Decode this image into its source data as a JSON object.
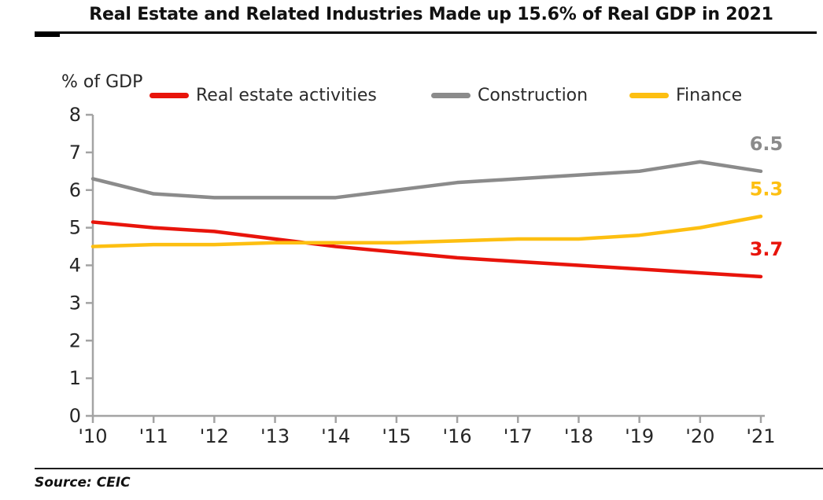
{
  "title": "Real Estate and Related Industries Made up 15.6% of Real GDP in 2021",
  "source": "Source: CEIC",
  "chart_data": {
    "type": "line",
    "title": "Real Estate and Related Industries Made up 15.6% of Real GDP in 2021",
    "y_axis_title": "% of GDP",
    "xlabel": "",
    "ylabel": "% of GDP",
    "categories": [
      "'10",
      "'11",
      "'12",
      "'13",
      "'14",
      "'15",
      "'16",
      "'17",
      "'18",
      "'19",
      "'20",
      "'21"
    ],
    "ylim": [
      0,
      8
    ],
    "y_ticks": [
      0,
      1,
      2,
      3,
      4,
      5,
      6,
      7,
      8
    ],
    "grid": false,
    "legend_position": "top",
    "axis_color": "#a3a3a3",
    "text_color": "#262626",
    "series": [
      {
        "name": "Real estate activities",
        "color": "#e8140b",
        "end_label": "3.7",
        "values": [
          5.15,
          5.0,
          4.9,
          4.7,
          4.5,
          4.35,
          4.2,
          4.1,
          4.0,
          3.9,
          3.8,
          3.7
        ]
      },
      {
        "name": "Construction",
        "color": "#8b8b8b",
        "end_label": "6.5",
        "values": [
          6.3,
          5.9,
          5.8,
          5.8,
          5.8,
          6.0,
          6.2,
          6.3,
          6.4,
          6.5,
          6.75,
          6.5
        ]
      },
      {
        "name": "Finance",
        "color": "#fdbf11",
        "end_label": "5.3",
        "values": [
          4.5,
          4.55,
          4.55,
          4.6,
          4.6,
          4.6,
          4.65,
          4.7,
          4.7,
          4.8,
          5.0,
          5.3
        ]
      }
    ],
    "source": "Source: CEIC"
  }
}
